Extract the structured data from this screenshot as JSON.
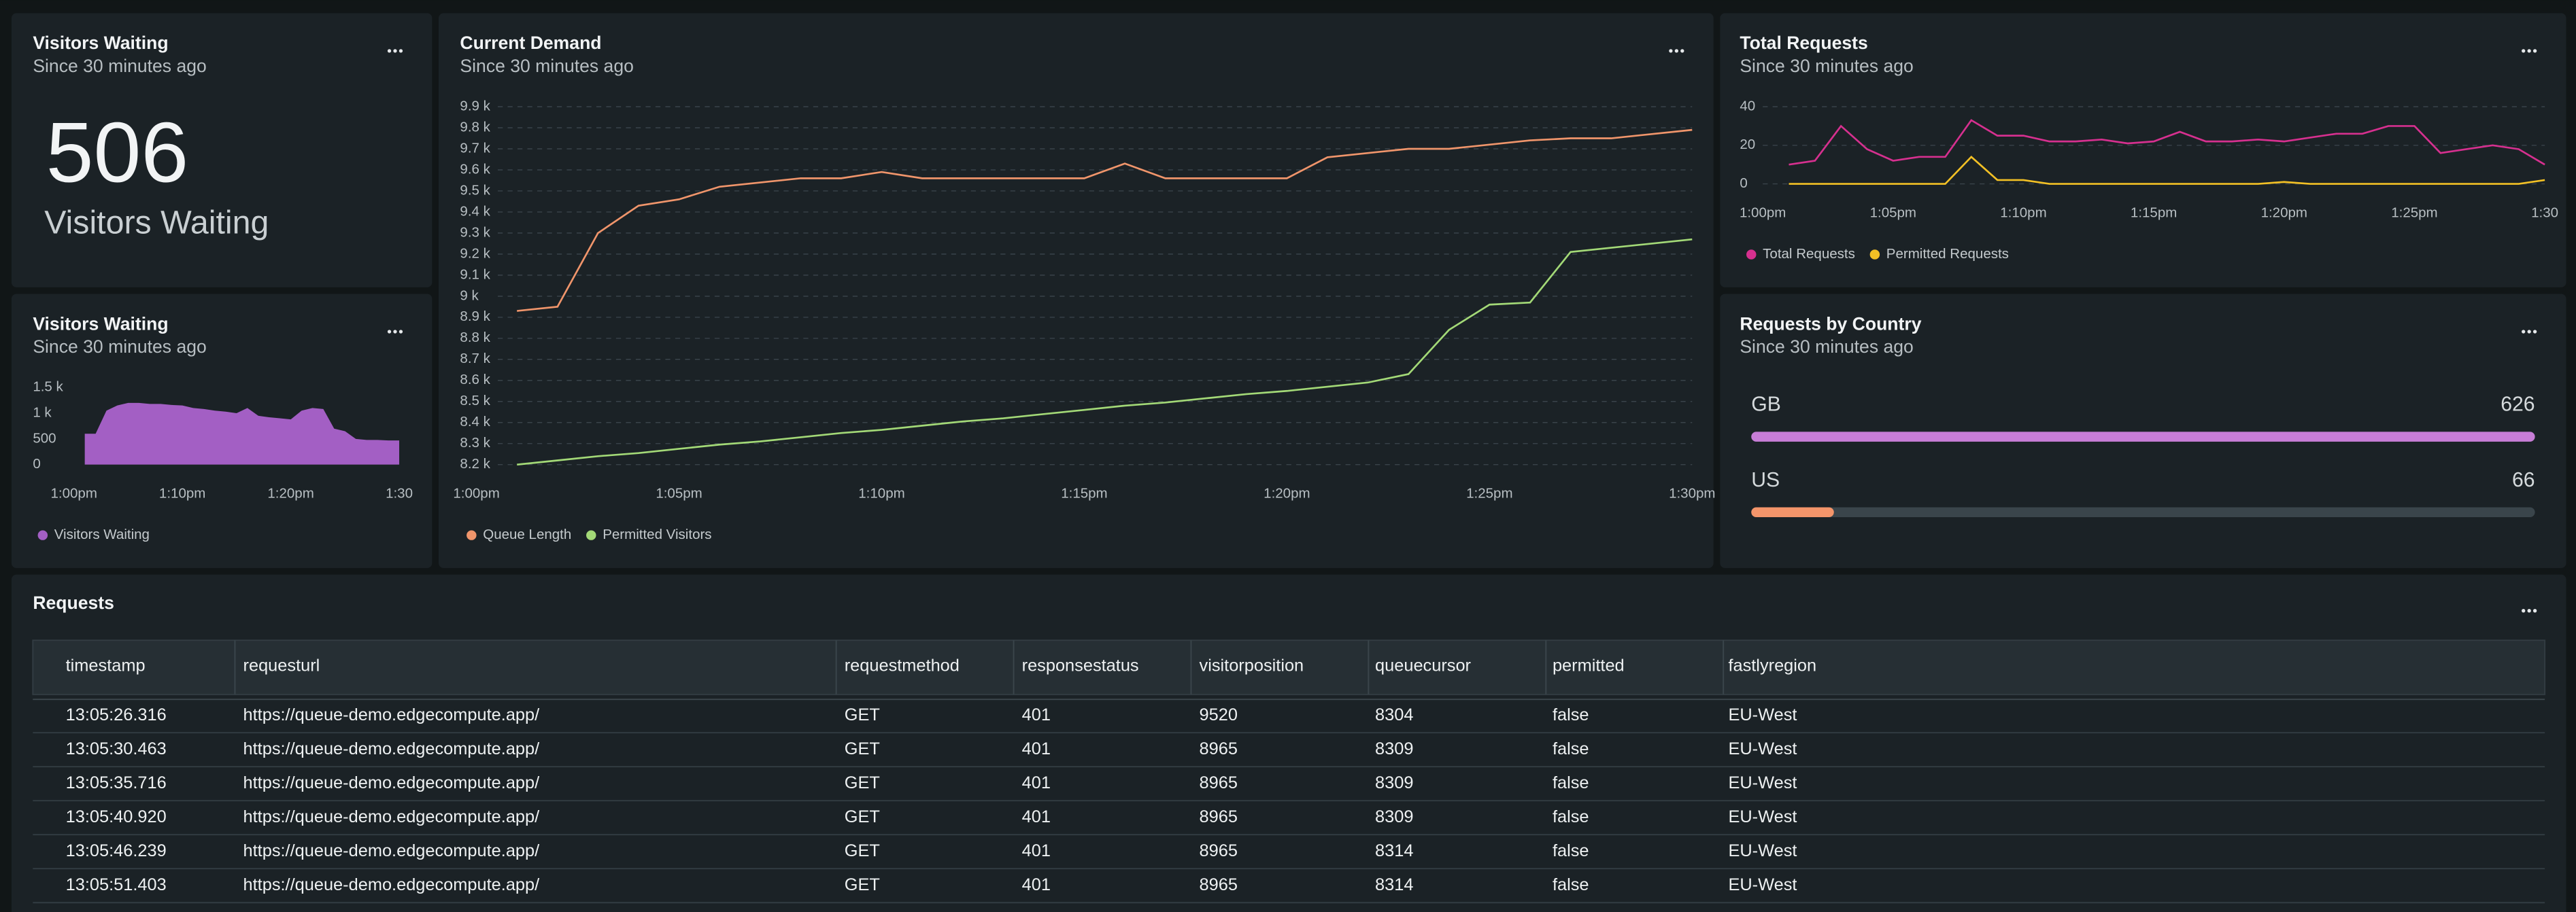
{
  "visitors_waiting_stat": {
    "title": "Visitors Waiting",
    "subtitle": "Since 30 minutes ago",
    "value": 506,
    "label": "Visitors Waiting"
  },
  "visitors_waiting_chart": {
    "title": "Visitors Waiting",
    "subtitle": "Since 30 minutes ago",
    "type": "area",
    "categories": [
      "1:00pm",
      null,
      null,
      null,
      null,
      null,
      null,
      null,
      null,
      null,
      "1:10pm",
      null,
      null,
      null,
      null,
      null,
      null,
      null,
      null,
      null,
      "1:20pm",
      null,
      null,
      null,
      null,
      null,
      null,
      null,
      null,
      null,
      "1:30"
    ],
    "series": [
      {
        "name": "Visitors Waiting",
        "color": "#a35fc4",
        "values": [
          null,
          600,
          600,
          1050,
          1150,
          1200,
          1200,
          1180,
          1180,
          1160,
          1150,
          1100,
          1080,
          1050,
          1030,
          1000,
          1100,
          950,
          920,
          900,
          880,
          1050,
          1100,
          1080,
          700,
          650,
          500,
          480,
          480,
          470,
          470
        ]
      }
    ],
    "ylim": [
      0,
      1500
    ],
    "yticks": [
      0,
      500,
      {
        "value": 1000,
        "label": "1 k"
      },
      {
        "value": 1500,
        "label": "1.5 k"
      }
    ],
    "grid": false
  },
  "current_demand": {
    "title": "Current Demand",
    "subtitle": "Since 30 minutes ago",
    "type": "line",
    "categories": [
      "1:00pm",
      null,
      null,
      null,
      null,
      "1:05pm",
      null,
      null,
      null,
      null,
      "1:10pm",
      null,
      null,
      null,
      null,
      "1:15pm",
      null,
      null,
      null,
      null,
      "1:20pm",
      null,
      null,
      null,
      null,
      "1:25pm",
      null,
      null,
      null,
      null,
      "1:30pm"
    ],
    "series": [
      {
        "name": "Queue Length",
        "color": "#f0956b",
        "values": [
          null,
          8930,
          8950,
          9300,
          9430,
          9460,
          9520,
          9540,
          9560,
          9560,
          9590,
          9560,
          9560,
          9560,
          9560,
          9560,
          9630,
          9560,
          9560,
          9560,
          9560,
          9660,
          9680,
          9700,
          9700,
          9720,
          9740,
          9750,
          9750,
          9770,
          9790
        ]
      },
      {
        "name": "Permitted Visitors",
        "color": "#a3d977",
        "values": [
          null,
          8200,
          8220,
          8240,
          8255,
          8275,
          8295,
          8310,
          8330,
          8350,
          8365,
          8385,
          8405,
          8420,
          8440,
          8460,
          8480,
          8495,
          8515,
          8535,
          8550,
          8570,
          8590,
          8630,
          8840,
          8960,
          8970,
          9210,
          9230,
          9250,
          9270
        ]
      }
    ],
    "ylim": [
      8200,
      9900
    ],
    "yticks": [
      {
        "value": 8200,
        "label": "8.2 k"
      },
      {
        "value": 8300,
        "label": "8.3 k"
      },
      {
        "value": 8400,
        "label": "8.4 k"
      },
      {
        "value": 8500,
        "label": "8.5 k"
      },
      {
        "value": 8600,
        "label": "8.6 k"
      },
      {
        "value": 8700,
        "label": "8.7 k"
      },
      {
        "value": 8800,
        "label": "8.8 k"
      },
      {
        "value": 8900,
        "label": "8.9 k"
      },
      {
        "value": 9000,
        "label": "9 k"
      },
      {
        "value": 9100,
        "label": "9.1 k"
      },
      {
        "value": 9200,
        "label": "9.2 k"
      },
      {
        "value": 9300,
        "label": "9.3 k"
      },
      {
        "value": 9400,
        "label": "9.4 k"
      },
      {
        "value": 9500,
        "label": "9.5 k"
      },
      {
        "value": 9600,
        "label": "9.6 k"
      },
      {
        "value": 9700,
        "label": "9.7 k"
      },
      {
        "value": 9800,
        "label": "9.8 k"
      },
      {
        "value": 9900,
        "label": "9.9 k"
      }
    ],
    "grid": true
  },
  "total_requests": {
    "title": "Total Requests",
    "subtitle": "Since 30 minutes ago",
    "type": "line",
    "categories": [
      "1:00pm",
      null,
      null,
      null,
      null,
      "1:05pm",
      null,
      null,
      null,
      null,
      "1:10pm",
      null,
      null,
      null,
      null,
      "1:15pm",
      null,
      null,
      null,
      null,
      "1:20pm",
      null,
      null,
      null,
      null,
      "1:25pm",
      null,
      null,
      null,
      null,
      "1:30"
    ],
    "series": [
      {
        "name": "Total Requests",
        "color": "#d6308f",
        "values": [
          null,
          10,
          12,
          30,
          18,
          12,
          14,
          14,
          33,
          25,
          25,
          22,
          22,
          23,
          21,
          22,
          27,
          22,
          22,
          23,
          22,
          24,
          26,
          26,
          30,
          30,
          16,
          18,
          20,
          18,
          10
        ]
      },
      {
        "name": "Permitted Requests",
        "color": "#f2c025",
        "values": [
          null,
          0,
          0,
          0,
          0,
          0,
          0,
          0,
          14,
          2,
          2,
          0,
          0,
          0,
          0,
          0,
          0,
          0,
          0,
          0,
          1,
          0,
          0,
          0,
          0,
          0,
          0,
          0,
          0,
          0,
          2
        ]
      }
    ],
    "ylim": [
      0,
      40
    ],
    "yticks": [
      0,
      20,
      40
    ],
    "grid": true
  },
  "requests_by_country": {
    "title": "Requests by Country",
    "subtitle": "Since 30 minutes ago",
    "type": "bar",
    "categories": [
      "GB",
      "US"
    ],
    "values": [
      626,
      66
    ],
    "colors": [
      "#c77dd6",
      "#f4956a"
    ]
  },
  "requests_table": {
    "title": "Requests",
    "columns": [
      "timestamp",
      "requesturl",
      "requestmethod",
      "responsestatus",
      "visitorposition",
      "queuecursor",
      "permitted",
      "fastlyregion"
    ],
    "rows": [
      [
        "13:05:26.316",
        "https://queue-demo.edgecompute.app/",
        "GET",
        401,
        9520,
        8304,
        "false",
        "EU-West"
      ],
      [
        "13:05:30.463",
        "https://queue-demo.edgecompute.app/",
        "GET",
        401,
        8965,
        8309,
        "false",
        "EU-West"
      ],
      [
        "13:05:35.716",
        "https://queue-demo.edgecompute.app/",
        "GET",
        401,
        8965,
        8309,
        "false",
        "EU-West"
      ],
      [
        "13:05:40.920",
        "https://queue-demo.edgecompute.app/",
        "GET",
        401,
        8965,
        8309,
        "false",
        "EU-West"
      ],
      [
        "13:05:46.239",
        "https://queue-demo.edgecompute.app/",
        "GET",
        401,
        8965,
        8314,
        "false",
        "EU-West"
      ],
      [
        "13:05:51.403",
        "https://queue-demo.edgecompute.app/",
        "GET",
        401,
        8965,
        8314,
        "false",
        "EU-West"
      ]
    ]
  }
}
